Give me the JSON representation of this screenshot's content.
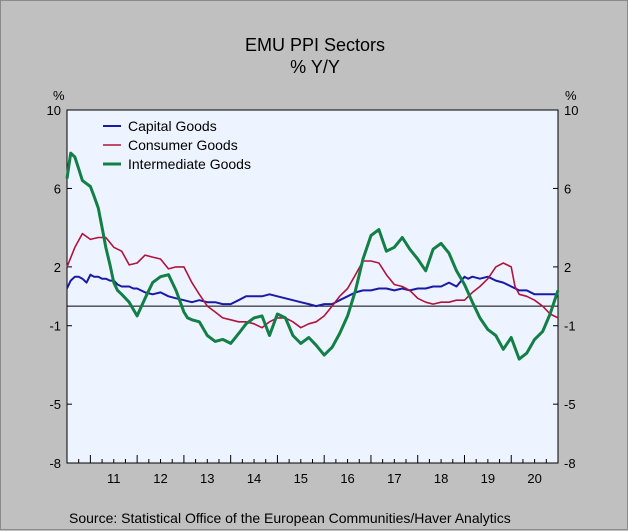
{
  "chart_data": {
    "type": "line",
    "title": "EMU PPI Sectors",
    "subtitle": "% Y/Y",
    "ylabel_left": "%",
    "ylabel_right": "%",
    "ylim": [
      -8,
      10
    ],
    "yticks": [
      10,
      6,
      2,
      -1,
      -5,
      -8
    ],
    "ytick_labels": [
      "10",
      "6",
      "2",
      "-1",
      "-5",
      "-8"
    ],
    "x_years": [
      "11",
      "12",
      "13",
      "14",
      "15",
      "16",
      "17",
      "18",
      "19",
      "20"
    ],
    "x_start": 2010.5,
    "x_end": 2021.0,
    "zero_line": true,
    "legend_position": "top-left",
    "source": "Source:  Statistical Office of the European Communities/Haver Analytics",
    "colors": {
      "background": "#eef4ff",
      "capital": "#1a1aa8",
      "consumer": "#b0143c",
      "intermediate": "#128046"
    },
    "series": [
      {
        "name": "Capital Goods",
        "color": "#1a1aa8",
        "x": [
          2010.5,
          2010.58,
          2010.67,
          2010.75,
          2010.83,
          2010.92,
          2011.0,
          2011.08,
          2011.17,
          2011.25,
          2011.33,
          2011.42,
          2011.5,
          2011.58,
          2011.67,
          2011.75,
          2011.83,
          2011.92,
          2012.0,
          2012.17,
          2012.33,
          2012.5,
          2012.67,
          2012.83,
          2013.0,
          2013.17,
          2013.33,
          2013.5,
          2013.67,
          2013.83,
          2014.0,
          2014.17,
          2014.33,
          2014.5,
          2014.67,
          2014.83,
          2015.0,
          2015.17,
          2015.33,
          2015.5,
          2015.67,
          2015.83,
          2016.0,
          2016.17,
          2016.33,
          2016.5,
          2016.67,
          2016.83,
          2017.0,
          2017.17,
          2017.33,
          2017.5,
          2017.67,
          2017.83,
          2018.0,
          2018.17,
          2018.33,
          2018.5,
          2018.67,
          2018.83,
          2019.0,
          2019.08,
          2019.17,
          2019.33,
          2019.5,
          2019.67,
          2019.83,
          2020.0,
          2020.17,
          2020.33,
          2020.5,
          2020.67,
          2020.83,
          2021.0
        ],
        "values": [
          0.9,
          1.3,
          1.5,
          1.5,
          1.4,
          1.2,
          1.6,
          1.5,
          1.5,
          1.4,
          1.4,
          1.3,
          1.3,
          1.1,
          1.0,
          1.0,
          1.0,
          0.9,
          0.9,
          0.7,
          0.6,
          0.7,
          0.5,
          0.4,
          0.3,
          0.2,
          0.3,
          0.2,
          0.2,
          0.1,
          0.1,
          0.3,
          0.5,
          0.5,
          0.5,
          0.6,
          0.5,
          0.4,
          0.3,
          0.2,
          0.1,
          0.0,
          0.1,
          0.1,
          0.3,
          0.5,
          0.7,
          0.8,
          0.8,
          0.9,
          0.9,
          0.8,
          0.9,
          0.8,
          0.9,
          0.9,
          1.0,
          1.0,
          1.2,
          1.0,
          1.5,
          1.4,
          1.5,
          1.4,
          1.5,
          1.3,
          1.2,
          1.0,
          0.8,
          0.8,
          0.6,
          0.6,
          0.6,
          0.6
        ]
      },
      {
        "name": "Consumer Goods",
        "color": "#b0143c",
        "x": [
          2010.5,
          2010.67,
          2010.83,
          2011.0,
          2011.17,
          2011.33,
          2011.5,
          2011.67,
          2011.83,
          2012.0,
          2012.17,
          2012.33,
          2012.5,
          2012.67,
          2012.83,
          2013.0,
          2013.17,
          2013.33,
          2013.5,
          2013.67,
          2013.83,
          2014.0,
          2014.17,
          2014.33,
          2014.5,
          2014.67,
          2014.83,
          2015.0,
          2015.17,
          2015.33,
          2015.5,
          2015.67,
          2015.83,
          2016.0,
          2016.17,
          2016.33,
          2016.5,
          2016.67,
          2016.83,
          2017.0,
          2017.17,
          2017.33,
          2017.5,
          2017.67,
          2017.83,
          2018.0,
          2018.17,
          2018.33,
          2018.5,
          2018.67,
          2018.83,
          2019.0,
          2019.17,
          2019.33,
          2019.5,
          2019.67,
          2019.83,
          2020.0,
          2020.08,
          2020.17,
          2020.33,
          2020.5,
          2020.67,
          2020.83,
          2021.0
        ],
        "values": [
          2.0,
          3.0,
          3.7,
          3.4,
          3.5,
          3.5,
          3.0,
          2.8,
          2.1,
          2.2,
          2.6,
          2.5,
          2.4,
          1.9,
          2.0,
          2.0,
          1.2,
          0.6,
          0.0,
          -0.3,
          -0.6,
          -0.7,
          -0.8,
          -0.8,
          -0.9,
          -1.1,
          -0.8,
          -0.6,
          -0.6,
          -0.8,
          -1.1,
          -0.9,
          -0.8,
          -0.5,
          0.0,
          0.5,
          0.9,
          1.6,
          2.3,
          2.3,
          2.2,
          1.6,
          1.1,
          1.0,
          0.8,
          0.4,
          0.2,
          0.1,
          0.2,
          0.2,
          0.3,
          0.3,
          0.7,
          1.0,
          1.4,
          2.0,
          2.2,
          2.0,
          1.0,
          0.6,
          0.5,
          0.3,
          0.0,
          -0.4,
          -0.6
        ]
      },
      {
        "name": "Intermediate Goods",
        "color": "#128046",
        "x": [
          2010.5,
          2010.58,
          2010.67,
          2010.75,
          2010.83,
          2011.0,
          2011.08,
          2011.17,
          2011.25,
          2011.33,
          2011.42,
          2011.5,
          2011.58,
          2011.67,
          2011.83,
          2012.0,
          2012.17,
          2012.33,
          2012.5,
          2012.67,
          2012.83,
          2013.0,
          2013.08,
          2013.17,
          2013.33,
          2013.5,
          2013.67,
          2013.83,
          2014.0,
          2014.17,
          2014.33,
          2014.5,
          2014.67,
          2014.83,
          2015.0,
          2015.17,
          2015.33,
          2015.5,
          2015.67,
          2015.83,
          2016.0,
          2016.17,
          2016.33,
          2016.5,
          2016.67,
          2016.83,
          2017.0,
          2017.17,
          2017.33,
          2017.5,
          2017.67,
          2017.83,
          2018.0,
          2018.17,
          2018.33,
          2018.5,
          2018.67,
          2018.83,
          2019.0,
          2019.17,
          2019.33,
          2019.5,
          2019.67,
          2019.83,
          2020.0,
          2020.17,
          2020.33,
          2020.5,
          2020.67,
          2020.83,
          2021.0
        ],
        "values": [
          6.5,
          7.8,
          7.6,
          7.0,
          6.4,
          6.1,
          5.6,
          5.0,
          4.0,
          3.0,
          2.1,
          1.2,
          0.8,
          0.6,
          0.2,
          -0.5,
          0.4,
          1.2,
          1.5,
          1.6,
          0.8,
          -0.3,
          -0.6,
          -0.7,
          -0.8,
          -1.5,
          -1.8,
          -1.7,
          -1.9,
          -1.4,
          -0.9,
          -0.6,
          -0.5,
          -1.5,
          -0.4,
          -0.6,
          -1.5,
          -1.9,
          -1.6,
          -2.0,
          -2.5,
          -2.1,
          -1.4,
          -0.5,
          0.8,
          2.4,
          3.6,
          3.9,
          2.8,
          3.0,
          3.5,
          2.9,
          2.4,
          1.8,
          2.9,
          3.2,
          2.7,
          1.8,
          1.1,
          0.2,
          -0.6,
          -1.2,
          -1.5,
          -2.2,
          -1.6,
          -2.7,
          -2.4,
          -1.7,
          -1.3,
          -0.4,
          0.8
        ]
      }
    ]
  }
}
